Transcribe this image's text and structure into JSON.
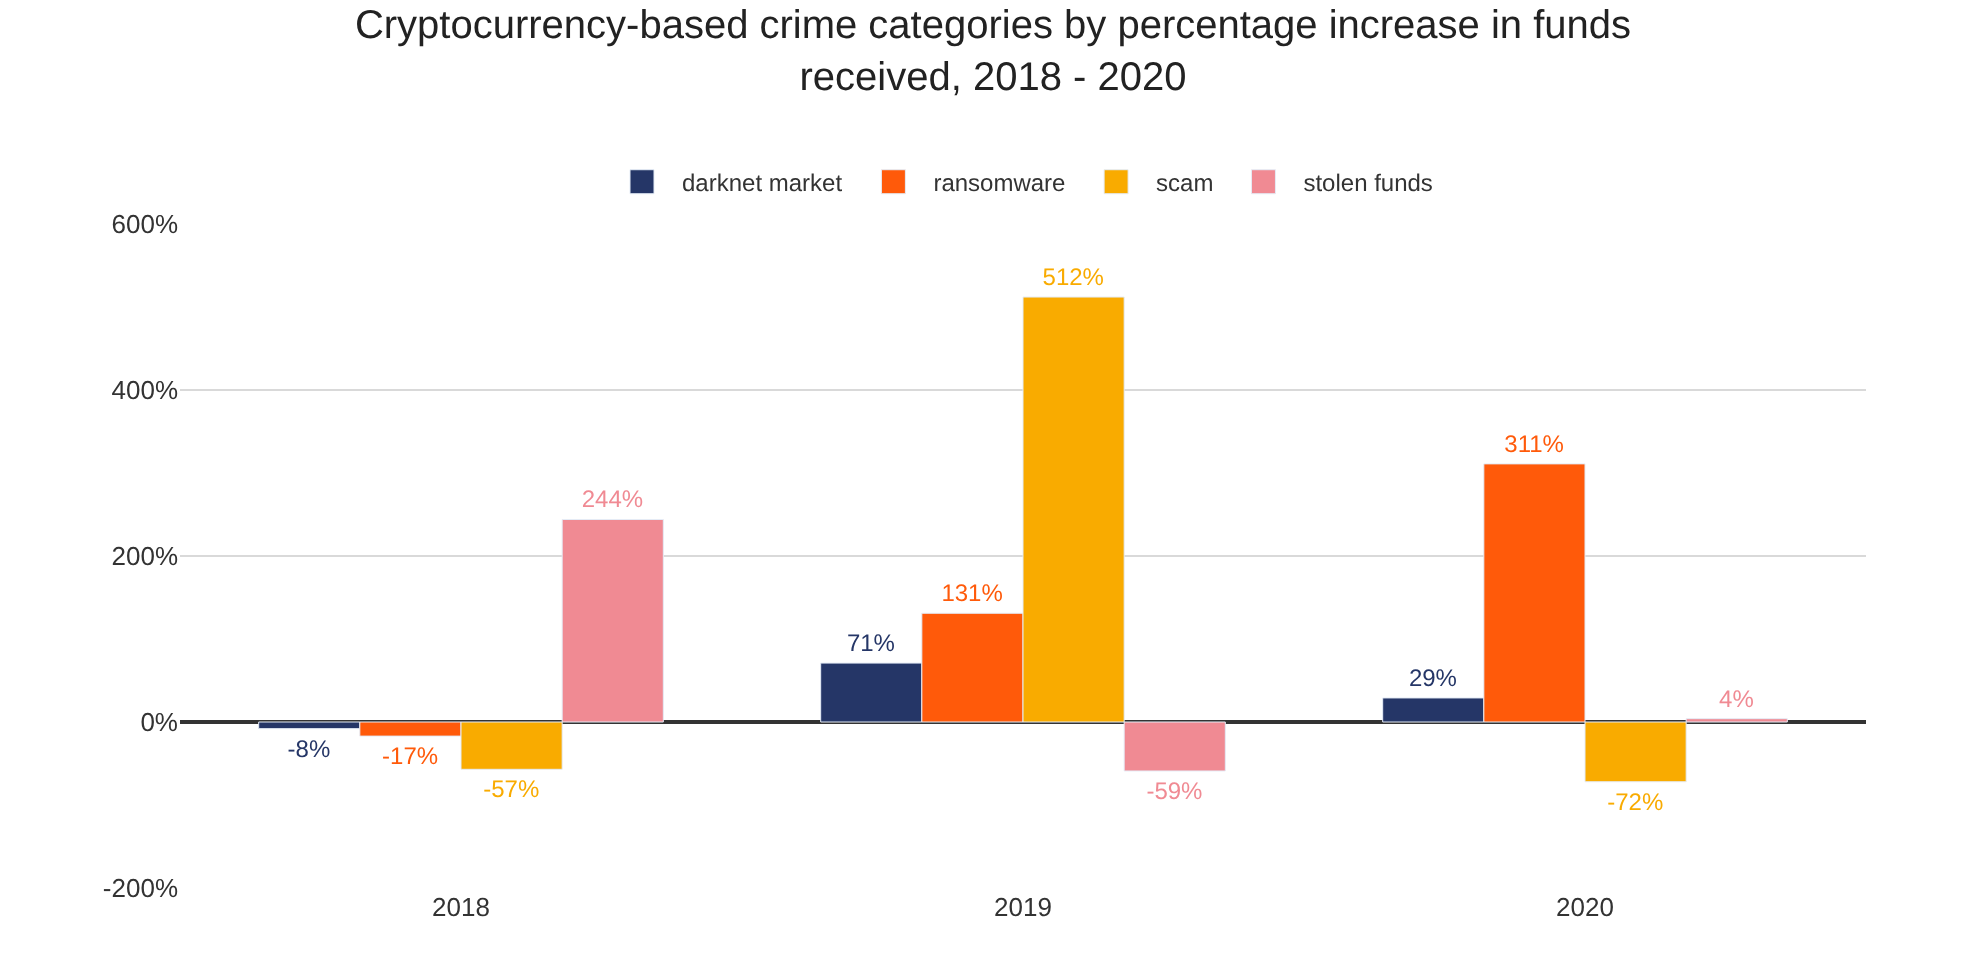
{
  "chart_data": {
    "type": "bar",
    "title": "Cryptocurrency-based crime categories by percentage increase in funds received, 2018 - 2020",
    "categories": [
      "2018",
      "2019",
      "2020"
    ],
    "series": [
      {
        "name": "darknet market",
        "color": "#253667",
        "values": [
          -8,
          71,
          29
        ],
        "value_labels": [
          "-8%",
          "71%",
          "29%"
        ]
      },
      {
        "name": "ransomware",
        "color": "#ff5a0a",
        "values": [
          -17,
          131,
          311
        ],
        "value_labels": [
          "-17%",
          "131%",
          "311%"
        ]
      },
      {
        "name": "scam",
        "color": "#f9ab00",
        "values": [
          -57,
          512,
          -72
        ],
        "value_labels": [
          "-57%",
          "512%",
          "-72%"
        ]
      },
      {
        "name": "stolen funds",
        "color": "#f08a93",
        "values": [
          244,
          -59,
          4
        ],
        "value_labels": [
          "244%",
          "-59%",
          "4%"
        ]
      }
    ],
    "ylim": [
      -200,
      600
    ],
    "yticks": [
      {
        "value": -200,
        "label": "-200%"
      },
      {
        "value": 0,
        "label": "0%"
      },
      {
        "value": 200,
        "label": "200%"
      },
      {
        "value": 400,
        "label": "400%"
      },
      {
        "value": 600,
        "label": "600%"
      }
    ],
    "grid": "y",
    "legend": "top"
  }
}
